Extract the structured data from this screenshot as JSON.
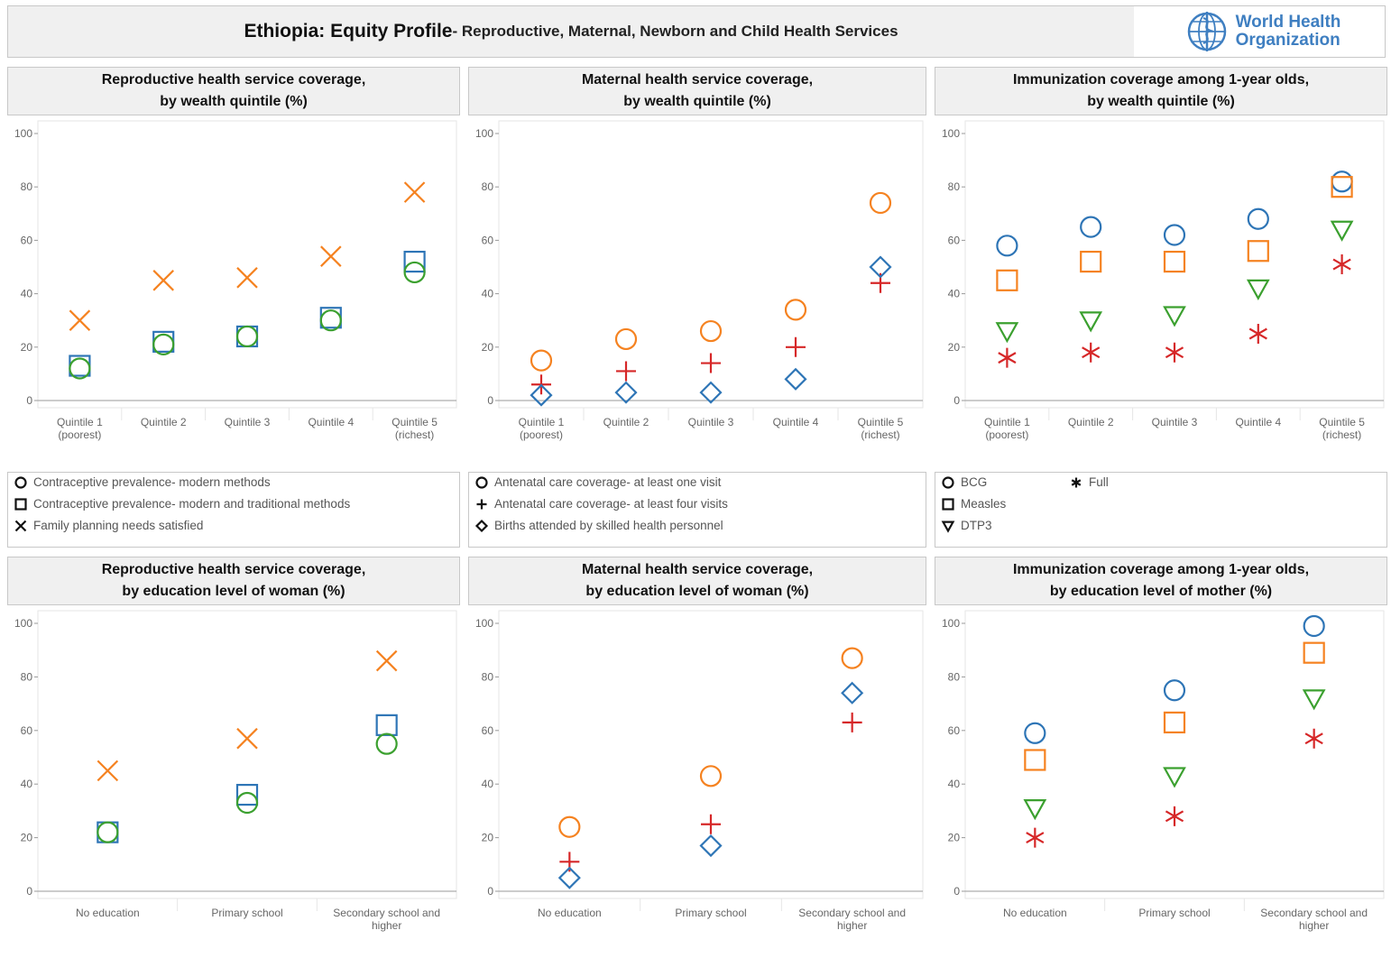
{
  "header": {
    "title_main": "Ethiopia: Equity Profile",
    "title_sub": " - Reproductive, Maternal, Newborn and Child Health Services",
    "logo_line1": "World Health",
    "logo_line2": "Organization"
  },
  "colors": {
    "orange": "#f58220",
    "blue": "#2e75b6",
    "green": "#3ba02f",
    "red": "#d62728",
    "axis": "#999999",
    "grid": "#e6e6e6"
  },
  "panels": {
    "p1": {
      "title1": "Reproductive health service coverage,",
      "title2": "by wealth quintile (%)"
    },
    "p2": {
      "title1": "Maternal health service coverage,",
      "title2": "by wealth quintile (%)"
    },
    "p3": {
      "title1": "Immunization coverage among 1-year olds,",
      "title2": "by wealth quintile (%)"
    },
    "p4": {
      "title1": "Reproductive health service coverage,",
      "title2": "by education level of woman (%)"
    },
    "p5": {
      "title1": "Maternal health service coverage,",
      "title2": "by education level of woman (%)"
    },
    "p6": {
      "title1": "Immunization coverage among 1-year olds,",
      "title2": "by education level of mother (%)"
    }
  },
  "legends": {
    "reproductive": [
      {
        "symbol": "circle",
        "label": "Contraceptive prevalence- modern methods"
      },
      {
        "symbol": "square",
        "label": "Contraceptive prevalence- modern and traditional methods"
      },
      {
        "symbol": "x",
        "label": "Family planning needs satisfied"
      }
    ],
    "maternal": [
      {
        "symbol": "circle",
        "label": "Antenatal care coverage- at least one visit"
      },
      {
        "symbol": "plus",
        "label": "Antenatal care coverage- at least four visits"
      },
      {
        "symbol": "diamond",
        "label": "Births attended by skilled health personnel"
      }
    ],
    "immunization": [
      {
        "symbol": "circle",
        "label": "BCG"
      },
      {
        "symbol": "square",
        "label": "Measles"
      },
      {
        "symbol": "triangle",
        "label": "DTP3"
      },
      {
        "symbol": "asterisk",
        "label": "Full"
      }
    ]
  },
  "chart_data": [
    {
      "id": "p1",
      "type": "scatter",
      "categories": [
        [
          "Quintile 1",
          "(poorest)"
        ],
        [
          "Quintile 2"
        ],
        [
          "Quintile 3"
        ],
        [
          "Quintile 4"
        ],
        [
          "Quintile 5",
          "(richest)"
        ]
      ],
      "ylim": [
        0,
        100
      ],
      "yticks": [
        0,
        20,
        40,
        60,
        80,
        100
      ],
      "series": [
        {
          "name": "Family planning needs satisfied",
          "symbol": "x",
          "color": "#f58220",
          "values": [
            30,
            45,
            46,
            54,
            78
          ]
        },
        {
          "name": "Contraceptive prevalence- modern and traditional methods",
          "symbol": "square",
          "color": "#2e75b6",
          "values": [
            13,
            22,
            24,
            31,
            52
          ]
        },
        {
          "name": "Contraceptive prevalence- modern methods",
          "symbol": "circle",
          "color": "#3ba02f",
          "values": [
            12,
            21,
            24,
            30,
            48
          ]
        }
      ]
    },
    {
      "id": "p2",
      "type": "scatter",
      "categories": [
        [
          "Quintile 1",
          "(poorest)"
        ],
        [
          "Quintile 2"
        ],
        [
          "Quintile 3"
        ],
        [
          "Quintile 4"
        ],
        [
          "Quintile 5",
          "(richest)"
        ]
      ],
      "ylim": [
        0,
        100
      ],
      "yticks": [
        0,
        20,
        40,
        60,
        80,
        100
      ],
      "series": [
        {
          "name": "Antenatal care coverage- at least one visit",
          "symbol": "circle",
          "color": "#f58220",
          "values": [
            15,
            23,
            26,
            34,
            74
          ]
        },
        {
          "name": "Antenatal care coverage- at least four visits",
          "symbol": "plus",
          "color": "#d62728",
          "values": [
            6,
            11,
            14,
            20,
            44
          ]
        },
        {
          "name": "Births attended by skilled health personnel",
          "symbol": "diamond",
          "color": "#2e75b6",
          "values": [
            2,
            3,
            3,
            8,
            50
          ]
        }
      ]
    },
    {
      "id": "p3",
      "type": "scatter",
      "categories": [
        [
          "Quintile 1",
          "(poorest)"
        ],
        [
          "Quintile 2"
        ],
        [
          "Quintile 3"
        ],
        [
          "Quintile 4"
        ],
        [
          "Quintile 5",
          "(richest)"
        ]
      ],
      "ylim": [
        0,
        100
      ],
      "yticks": [
        0,
        20,
        40,
        60,
        80,
        100
      ],
      "series": [
        {
          "name": "BCG",
          "symbol": "circle",
          "color": "#2e75b6",
          "values": [
            58,
            65,
            62,
            68,
            82
          ]
        },
        {
          "name": "Measles",
          "symbol": "square",
          "color": "#f58220",
          "values": [
            45,
            52,
            52,
            56,
            80
          ]
        },
        {
          "name": "DTP3",
          "symbol": "triangle",
          "color": "#3ba02f",
          "values": [
            26,
            30,
            32,
            42,
            64
          ]
        },
        {
          "name": "Full",
          "symbol": "asterisk",
          "color": "#d62728",
          "values": [
            16,
            18,
            18,
            25,
            51
          ]
        }
      ]
    },
    {
      "id": "p4",
      "type": "scatter",
      "categories": [
        [
          "No education"
        ],
        [
          "Primary school"
        ],
        [
          "Secondary school and",
          "higher"
        ]
      ],
      "ylim": [
        0,
        100
      ],
      "yticks": [
        0,
        20,
        40,
        60,
        80,
        100
      ],
      "series": [
        {
          "name": "Family planning needs satisfied",
          "symbol": "x",
          "color": "#f58220",
          "values": [
            45,
            57,
            86
          ]
        },
        {
          "name": "Contraceptive prevalence- modern and traditional methods",
          "symbol": "square",
          "color": "#2e75b6",
          "values": [
            22,
            36,
            62
          ]
        },
        {
          "name": "Contraceptive prevalence- modern methods",
          "symbol": "circle",
          "color": "#3ba02f",
          "values": [
            22,
            33,
            55
          ]
        }
      ]
    },
    {
      "id": "p5",
      "type": "scatter",
      "categories": [
        [
          "No education"
        ],
        [
          "Primary school"
        ],
        [
          "Secondary school and",
          "higher"
        ]
      ],
      "ylim": [
        0,
        100
      ],
      "yticks": [
        0,
        20,
        40,
        60,
        80,
        100
      ],
      "series": [
        {
          "name": "Antenatal care coverage- at least one visit",
          "symbol": "circle",
          "color": "#f58220",
          "values": [
            24,
            43,
            87
          ]
        },
        {
          "name": "Antenatal care coverage- at least four visits",
          "symbol": "plus",
          "color": "#d62728",
          "values": [
            11,
            25,
            63
          ]
        },
        {
          "name": "Births attended by skilled health personnel",
          "symbol": "diamond",
          "color": "#2e75b6",
          "values": [
            5,
            17,
            74
          ]
        }
      ]
    },
    {
      "id": "p6",
      "type": "scatter",
      "categories": [
        [
          "No education"
        ],
        [
          "Primary school"
        ],
        [
          "Secondary school and",
          "higher"
        ]
      ],
      "ylim": [
        0,
        100
      ],
      "yticks": [
        0,
        20,
        40,
        60,
        80,
        100
      ],
      "series": [
        {
          "name": "BCG",
          "symbol": "circle",
          "color": "#2e75b6",
          "values": [
            59,
            75,
            99
          ]
        },
        {
          "name": "Measles",
          "symbol": "square",
          "color": "#f58220",
          "values": [
            49,
            63,
            89
          ]
        },
        {
          "name": "DTP3",
          "symbol": "triangle",
          "color": "#3ba02f",
          "values": [
            31,
            43,
            72
          ]
        },
        {
          "name": "Full",
          "symbol": "asterisk",
          "color": "#d62728",
          "values": [
            20,
            28,
            57
          ]
        }
      ]
    }
  ]
}
